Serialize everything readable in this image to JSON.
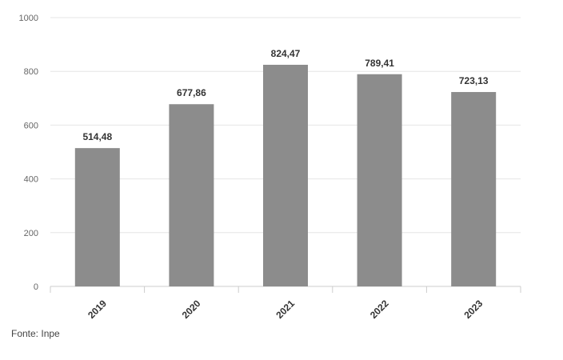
{
  "chart_data": {
    "type": "bar",
    "categories": [
      "2019",
      "2020",
      "2021",
      "2022",
      "2023"
    ],
    "values": [
      514.48,
      677.86,
      824.47,
      789.41,
      723.13
    ],
    "data_labels": [
      "514,48",
      "677,86",
      "824,47",
      "789,41",
      "723,13"
    ],
    "ylim": [
      0,
      1000
    ],
    "yticks": [
      0,
      200,
      400,
      600,
      800,
      1000
    ],
    "grid": true,
    "bar_color": "#8c8c8c",
    "source": "Fonte: Inpe"
  }
}
